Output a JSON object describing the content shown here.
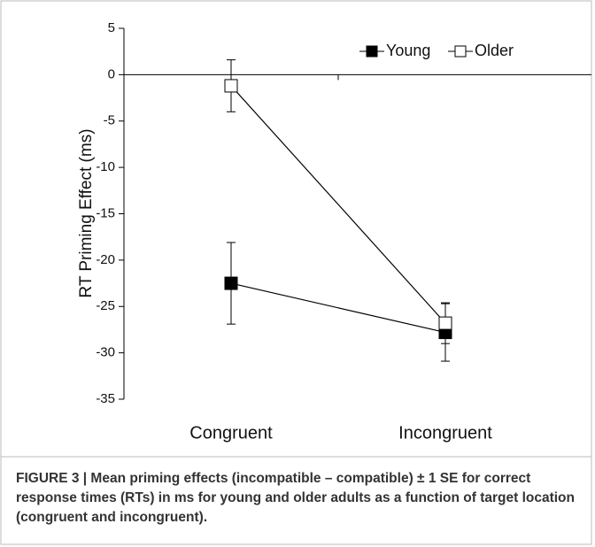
{
  "chart_data": {
    "type": "line",
    "y_label": "RT Priming Effect (ms)",
    "categories": [
      "Congruent",
      "Incongruent"
    ],
    "series": [
      {
        "name": "Young",
        "color": "#000000",
        "marker_fill": "#000000",
        "values": [
          -22.5,
          -27.8
        ],
        "errors": [
          4.4,
          3.1
        ]
      },
      {
        "name": "Older",
        "color": "#000000",
        "marker_fill": "#ffffff",
        "values": [
          -1.2,
          -26.8
        ],
        "errors": [
          2.8,
          2.2
        ]
      }
    ],
    "ylim": [
      -35,
      5
    ],
    "yticks": [
      -35,
      -30,
      -25,
      -20,
      -15,
      -10,
      -5,
      0,
      5
    ],
    "legend": "top-right"
  },
  "caption": "FIGURE 3 | Mean priming effects (incompatible – compatible) ± 1 SE for correct response times (RTs) in ms for young and older adults as a function of target location (congruent and incongruent)."
}
